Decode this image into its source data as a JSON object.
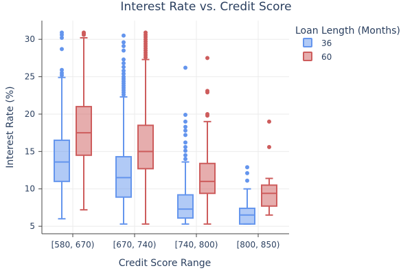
{
  "chart_data": {
    "type": "box",
    "title": "Interest Rate vs. Credit Score",
    "xlabel": "Credit Score Range",
    "ylabel": "Interest Rate (%)",
    "categories": [
      "[580, 670)",
      "[670, 740)",
      "[740, 800)",
      "[800, 850)"
    ],
    "ylim": [
      4,
      32.5
    ],
    "yticks": [
      5,
      10,
      15,
      20,
      25,
      30
    ],
    "grid": true,
    "legend": {
      "title": "Loan Length (Months)",
      "position": "top-right"
    },
    "series": [
      {
        "name": "36",
        "color": "#6495ED",
        "boxes": [
          {
            "min": 6.0,
            "q1": 11.0,
            "median": 13.6,
            "q3": 16.5,
            "max": 24.9,
            "outliers": [
              25.2,
              25.5,
              25.9,
              28.7,
              30.2,
              30.6,
              30.9
            ]
          },
          {
            "min": 5.3,
            "q1": 8.9,
            "median": 11.5,
            "q3": 14.3,
            "max": 22.3,
            "outliers": [
              22.6,
              22.9,
              23.2,
              23.5,
              23.8,
              24.1,
              24.4,
              24.7,
              25.0,
              25.4,
              25.8,
              26.3,
              26.8,
              27.3,
              28.5,
              29.1,
              29.6,
              30.5
            ]
          },
          {
            "min": 5.3,
            "q1": 6.1,
            "median": 7.3,
            "q3": 9.2,
            "max": 13.6,
            "outliers": [
              14.0,
              14.5,
              15.1,
              15.6,
              16.2,
              17.2,
              17.8,
              18.3,
              19.0,
              19.9,
              26.2
            ]
          },
          {
            "min": 5.3,
            "q1": 5.3,
            "median": 6.5,
            "q3": 7.4,
            "max": 10.0,
            "outliers": [
              11.1,
              12.1,
              12.9
            ]
          }
        ]
      },
      {
        "name": "60",
        "color": "#CD5C5C",
        "boxes": [
          {
            "min": 7.2,
            "q1": 14.5,
            "median": 17.5,
            "q3": 21.0,
            "max": 30.2,
            "outliers": [
              30.6,
              30.8,
              30.9
            ]
          },
          {
            "min": 5.3,
            "q1": 12.7,
            "median": 15.0,
            "q3": 18.5,
            "max": 27.3,
            "outliers": [
              27.6,
              27.9,
              28.2,
              28.5,
              28.8,
              29.1,
              29.4,
              29.7,
              30.0,
              30.3,
              30.6,
              30.9
            ]
          },
          {
            "min": 5.3,
            "q1": 9.4,
            "median": 11.0,
            "q3": 13.4,
            "max": 19.0,
            "outliers": [
              19.8,
              20.0,
              22.9,
              23.1,
              27.5
            ]
          },
          {
            "min": 6.5,
            "q1": 7.7,
            "median": 9.4,
            "q3": 10.5,
            "max": 11.4,
            "outliers": [
              15.6,
              19.0
            ]
          }
        ]
      }
    ]
  }
}
